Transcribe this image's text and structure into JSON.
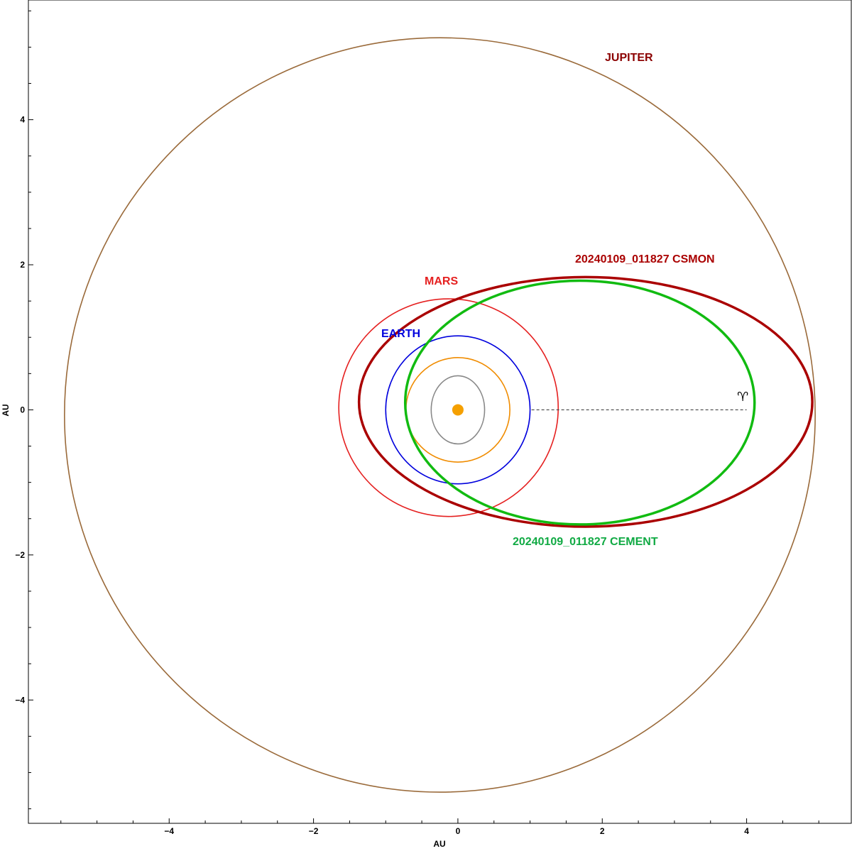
{
  "chart_data": {
    "type": "scatter",
    "subtype": "orbital-plot",
    "title": "",
    "xlabel": "AU",
    "ylabel": "AU",
    "xlim": [
      -5.95,
      5.45
    ],
    "ylim": [
      -5.7,
      5.65
    ],
    "x_ticks": [
      -4,
      -2,
      0,
      2,
      4
    ],
    "y_ticks": [
      -4,
      -2,
      0,
      2,
      4
    ],
    "x_tick_labels": [
      "−4",
      "−2",
      "0",
      "2",
      "4"
    ],
    "y_tick_labels": [
      "−4",
      "−2",
      "0",
      "2",
      "4"
    ],
    "grid": false,
    "legend": "none",
    "sun": {
      "x": 0,
      "y": 0,
      "color": "#f5a000"
    },
    "planet_orbits": [
      {
        "name": "MERCURY",
        "cx": 0.0,
        "cy": 0.0,
        "rx": 0.37,
        "ry": 0.47,
        "color": "#888888",
        "labeled": false
      },
      {
        "name": "VENUS",
        "cx": 0.0,
        "cy": 0.0,
        "rx": 0.72,
        "ry": 0.72,
        "color": "#f08c00",
        "labeled": false
      },
      {
        "name": "EARTH",
        "cx": 0.0,
        "cy": 0.0,
        "rx": 1.0,
        "ry": 1.02,
        "color": "#0000dd",
        "labeled": true
      },
      {
        "name": "MARS",
        "cx": -0.13,
        "cy": 0.03,
        "rx": 1.52,
        "ry": 1.5,
        "color": "#e52020",
        "labeled": true
      },
      {
        "name": "JUPITER",
        "cx": -0.25,
        "cy": -0.07,
        "rx": 5.2,
        "ry": 5.2,
        "color": "#9a6a3a",
        "labeled": true
      }
    ],
    "series": [
      {
        "name": "20240109_011827 CSMON",
        "type": "orbit",
        "cx": 1.77,
        "cy": 0.11,
        "rx": 3.14,
        "ry": 1.72,
        "color": "#aa0000"
      },
      {
        "name": "20240109_011827 CEMENT",
        "type": "orbit",
        "cx": 1.69,
        "cy": 0.1,
        "rx": 2.42,
        "ry": 1.68,
        "color": "#11bb11"
      }
    ],
    "vernal_line": {
      "x_start": 1.02,
      "x_end": 4.0,
      "y": 0
    },
    "labels": {
      "jupiter": "JUPITER",
      "mars": "MARS",
      "earth": "EARTH",
      "csmon": "20240109_011827 CSMON",
      "cement": "20240109_011827 CEMENT",
      "vernal_symbol": "♈"
    },
    "label_colors": {
      "jupiter": "#8b0000",
      "mars": "#e52020",
      "earth": "#0000dd",
      "csmon": "#aa0000",
      "cement": "#11aa44"
    }
  }
}
